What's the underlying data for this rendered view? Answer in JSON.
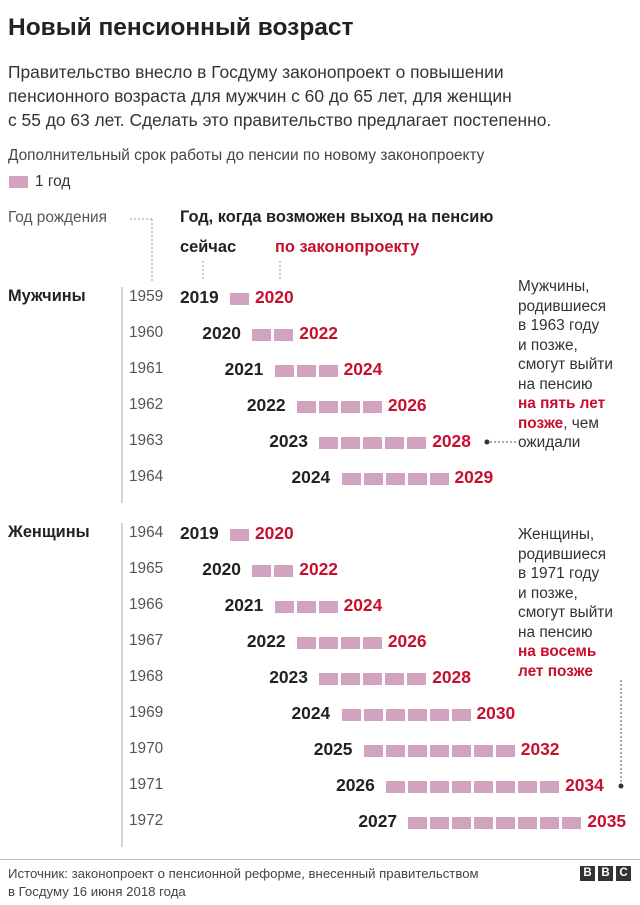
{
  "title": "Новый пенсионный возраст",
  "intro_lines": [
    "Правительство внесло в Госдуму законопроект о повышении",
    "пенсионного возраста для мужчин с 60 до 65 лет, для женщин",
    "с 55 до 63 лет. Сделать это правительство предлагает постепенно."
  ],
  "legend": {
    "text": "Дополнительный срок работы до пенсии по новому законопроекту",
    "unit": "1 год"
  },
  "headers": {
    "birth_year": "Год рождения",
    "pension_year": "Год, когда возможен выход на пенсию",
    "now": "сейчас",
    "law": "по законопроекту"
  },
  "colors": {
    "bar": "#d1a3bf",
    "law_text": "#c8102e",
    "now_text": "#222222"
  },
  "chart_data": {
    "type": "bar",
    "unit": "1 год",
    "groups": [
      {
        "name": "Мужчины",
        "rows": [
          {
            "birth": 1959,
            "now": 2019,
            "law": 2020
          },
          {
            "birth": 1960,
            "now": 2020,
            "law": 2022
          },
          {
            "birth": 1961,
            "now": 2021,
            "law": 2024
          },
          {
            "birth": 1962,
            "now": 2022,
            "law": 2026
          },
          {
            "birth": 1963,
            "now": 2023,
            "law": 2028
          },
          {
            "birth": 1964,
            "now": 2024,
            "law": 2029
          }
        ],
        "note": {
          "lines": [
            "Мужчины,",
            "родившиеся",
            "в 1963 году",
            "и позже,",
            "смогут выйти",
            "на пенсию"
          ],
          "highlight_lines": [
            "на пять лет",
            "позже"
          ],
          "tail": ", чем",
          "after_lines": [
            "ожидали"
          ]
        }
      },
      {
        "name": "Женщины",
        "rows": [
          {
            "birth": 1964,
            "now": 2019,
            "law": 2020
          },
          {
            "birth": 1965,
            "now": 2020,
            "law": 2022
          },
          {
            "birth": 1966,
            "now": 2021,
            "law": 2024
          },
          {
            "birth": 1967,
            "now": 2022,
            "law": 2026
          },
          {
            "birth": 1968,
            "now": 2023,
            "law": 2028
          },
          {
            "birth": 1969,
            "now": 2024,
            "law": 2030
          },
          {
            "birth": 1970,
            "now": 2025,
            "law": 2032
          },
          {
            "birth": 1971,
            "now": 2026,
            "law": 2034
          },
          {
            "birth": 1972,
            "now": 2027,
            "law": 2035
          }
        ],
        "note": {
          "lines": [
            "Женщины,",
            "родившиеся",
            "в 1971 году",
            "и позже,",
            "смогут выйти",
            "на пенсию"
          ],
          "highlight_lines": [
            "на восемь",
            "лет позже"
          ],
          "tail": "",
          "after_lines": []
        }
      }
    ]
  },
  "footer": {
    "source_lines": [
      "Источник: законопроект о пенсионной реформе, внесенный правительством",
      "в Госдуму 16 июня 2018 года"
    ],
    "logo": [
      "B",
      "B",
      "C"
    ]
  }
}
